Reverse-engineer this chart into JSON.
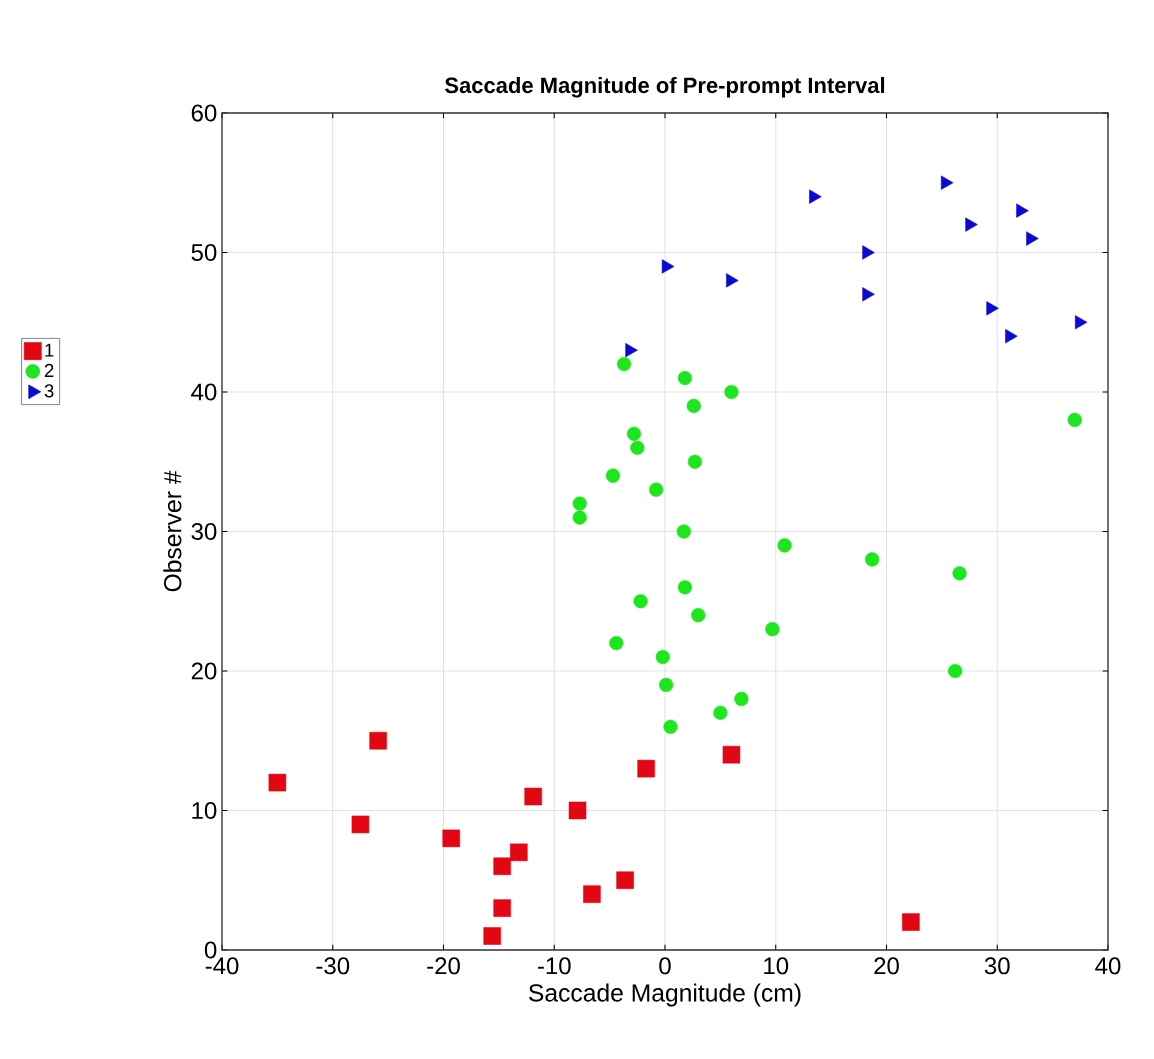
{
  "chart_data": {
    "type": "scatter",
    "title": "Saccade Magnitude of Pre-prompt Interval",
    "xlabel": "Saccade Magnitude (cm)",
    "ylabel": "Observer #",
    "xlim": [
      -40,
      40
    ],
    "ylim": [
      0,
      60
    ],
    "xticks": [
      -40,
      -30,
      -20,
      -10,
      0,
      10,
      20,
      30,
      40
    ],
    "yticks": [
      0,
      10,
      20,
      30,
      40,
      50,
      60
    ],
    "grid": true,
    "legend": "left",
    "series": [
      {
        "name": "1",
        "color": "#e30613",
        "marker": "square",
        "x": [
          -15.6,
          22.2,
          -14.7,
          -6.6,
          -3.6,
          -14.7,
          -13.2,
          -19.3,
          -27.5,
          -7.9,
          -11.9,
          -35.0,
          -1.7,
          6.0,
          -25.9
        ],
        "values": [
          1,
          2,
          3,
          4,
          5,
          6,
          7,
          8,
          9,
          10,
          11,
          12,
          13,
          14,
          15
        ]
      },
      {
        "name": "2",
        "color": "#1ee61e",
        "marker": "circle",
        "x": [
          0.5,
          5.0,
          6.9,
          0.1,
          26.2,
          -0.2,
          -4.4,
          9.7,
          3.0,
          -2.2,
          1.8,
          26.6,
          18.7,
          10.8,
          1.7,
          -7.7,
          -7.7,
          -0.8,
          -4.7,
          2.7,
          -2.5,
          -2.8,
          37.0,
          2.6,
          6.0,
          1.8,
          -3.7
        ],
        "values": [
          16,
          17,
          18,
          19,
          20,
          21,
          22,
          23,
          24,
          25,
          26,
          27,
          28,
          29,
          30,
          31,
          32,
          33,
          34,
          35,
          36,
          37,
          38,
          39,
          40,
          41,
          42
        ]
      },
      {
        "name": "3",
        "color": "#0a0ad2",
        "marker": "triangle",
        "x": [
          -3.2,
          31.1,
          37.4,
          29.4,
          18.2,
          5.9,
          0.1,
          18.2,
          33.0,
          27.5,
          32.1,
          13.4,
          25.3
        ],
        "values": [
          43,
          44,
          45,
          46,
          47,
          48,
          49,
          50,
          51,
          52,
          53,
          54,
          55
        ]
      }
    ]
  }
}
